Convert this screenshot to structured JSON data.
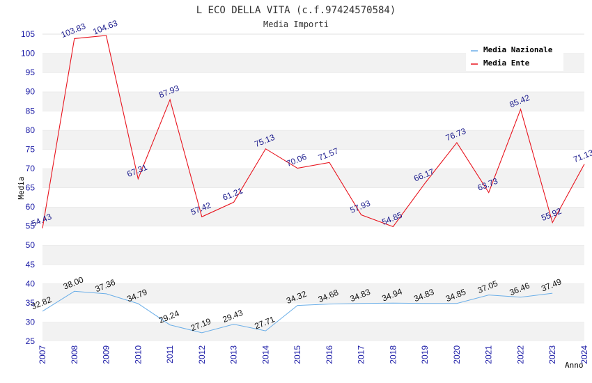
{
  "chart_data": {
    "type": "line",
    "title": "L ECO DELLA VITA (c.f.97424570584)",
    "subtitle": "Media Importi",
    "xlabel": "Anno",
    "ylabel": "Media",
    "ylim": [
      25,
      105
    ],
    "yticks": [
      25,
      30,
      35,
      40,
      45,
      50,
      55,
      60,
      65,
      70,
      75,
      80,
      85,
      90,
      95,
      100,
      105
    ],
    "x": [
      "2007",
      "2008",
      "2009",
      "2010",
      "2011",
      "2012",
      "2013",
      "2014",
      "2015",
      "2016",
      "2017",
      "2018",
      "2019",
      "2020",
      "2021",
      "2022",
      "2023",
      "2024"
    ],
    "grid": "horizontal bands",
    "legend_position": "top-right",
    "series": [
      {
        "name": "Media Nazionale",
        "color": "#6aaee8",
        "values": [
          32.82,
          38.0,
          37.36,
          34.79,
          29.24,
          27.19,
          29.43,
          27.71,
          34.32,
          34.68,
          34.83,
          34.94,
          34.83,
          34.85,
          37.05,
          36.46,
          37.49,
          null
        ],
        "labels": [
          "32.82",
          "38.00",
          "37.36",
          "34.79",
          "29.24",
          "27.19",
          "29.43",
          "27.71",
          "34.32",
          "34.68",
          "34.83",
          "34.94",
          "34.83",
          "34.85",
          "37.05",
          "36.46",
          "37.49",
          ""
        ]
      },
      {
        "name": "Media Ente",
        "color": "#e8141e",
        "values": [
          54.43,
          103.83,
          104.63,
          67.31,
          87.93,
          57.42,
          61.21,
          75.13,
          70.06,
          71.57,
          57.93,
          54.85,
          66.17,
          76.73,
          63.73,
          85.42,
          55.92,
          71.13
        ],
        "labels": [
          "54.43",
          "103.83",
          "104.63",
          "67.31",
          "87.93",
          "57.42",
          "61.21",
          "75.13",
          "70.06",
          "71.57",
          "57.93",
          "54.85",
          "66.17",
          "76.73",
          "63.73",
          "85.42",
          "55.92",
          "71.13"
        ]
      }
    ]
  }
}
